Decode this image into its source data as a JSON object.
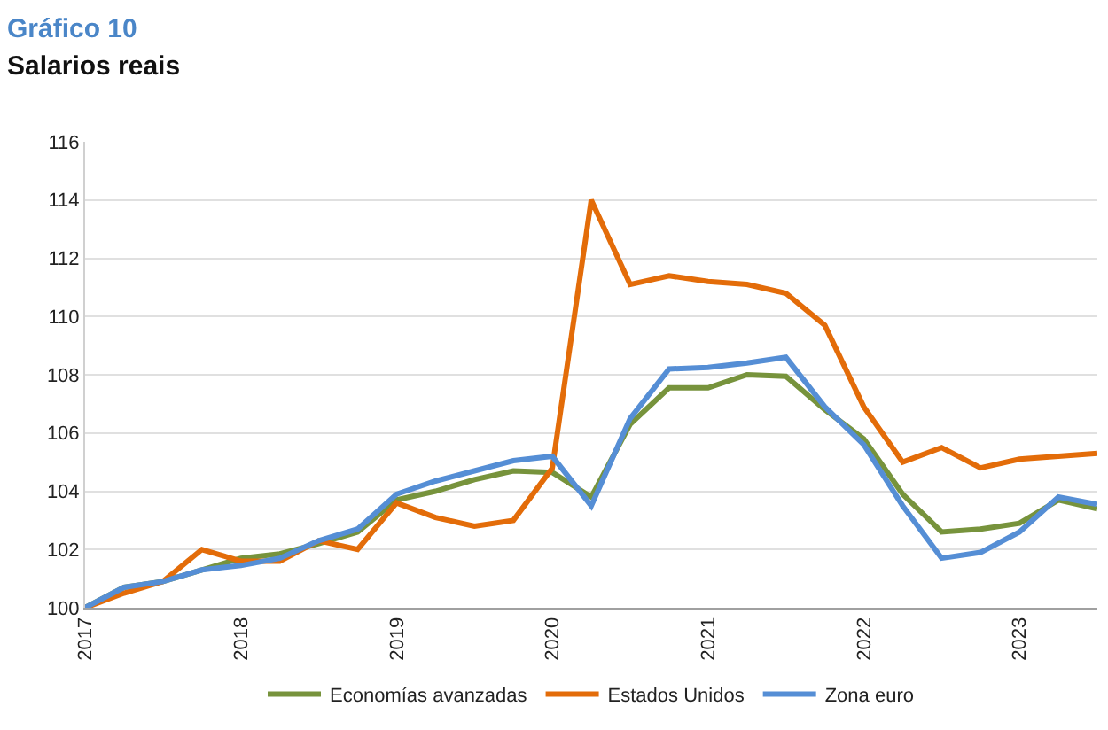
{
  "chart_data": {
    "type": "line",
    "title": "Gráfico 10",
    "subtitle": "Salarios reais",
    "x": [
      2017,
      2017.25,
      2017.5,
      2017.75,
      2018,
      2018.25,
      2018.5,
      2018.75,
      2019,
      2019.25,
      2019.5,
      2019.75,
      2020,
      2020.25,
      2020.5,
      2020.75,
      2021,
      2021.25,
      2021.5,
      2021.75,
      2022,
      2022.25,
      2022.5,
      2022.75,
      2023,
      2023.25,
      2023.5
    ],
    "series": [
      {
        "name": "Economías avanzadas",
        "color": "#77933c",
        "values": [
          100,
          100.7,
          100.9,
          101.3,
          101.7,
          101.85,
          102.2,
          102.6,
          103.7,
          104.0,
          104.4,
          104.7,
          104.65,
          103.8,
          106.3,
          107.55,
          107.55,
          108.0,
          107.95,
          106.8,
          105.8,
          103.9,
          102.6,
          102.7,
          102.9,
          103.7,
          103.4
        ]
      },
      {
        "name": "Estados Unidos",
        "color": "#e36c09",
        "values": [
          100,
          100.5,
          100.9,
          102.0,
          101.6,
          101.6,
          102.3,
          102.0,
          103.6,
          103.1,
          102.8,
          103.0,
          104.8,
          114.0,
          111.1,
          111.4,
          111.2,
          111.1,
          110.8,
          109.7,
          106.9,
          105.0,
          105.5,
          104.8,
          105.1,
          105.2,
          105.3
        ]
      },
      {
        "name": "Zona euro",
        "color": "#558ed5",
        "values": [
          100,
          100.7,
          100.9,
          101.3,
          101.45,
          101.7,
          102.3,
          102.7,
          103.9,
          104.35,
          104.7,
          105.05,
          105.2,
          103.5,
          106.5,
          108.2,
          108.25,
          108.4,
          108.6,
          106.9,
          105.6,
          103.5,
          101.7,
          101.9,
          102.6,
          103.8,
          103.55
        ]
      }
    ],
    "xlim": [
      2017,
      2023.5
    ],
    "xticks": [
      2017,
      2018,
      2019,
      2020,
      2021,
      2022,
      2023
    ],
    "ylim": [
      100,
      116
    ],
    "yticks": [
      100,
      102,
      104,
      106,
      108,
      110,
      112,
      114,
      116
    ],
    "grid": "y",
    "legend": "bottom",
    "marker": "none",
    "line_style": "solid"
  }
}
